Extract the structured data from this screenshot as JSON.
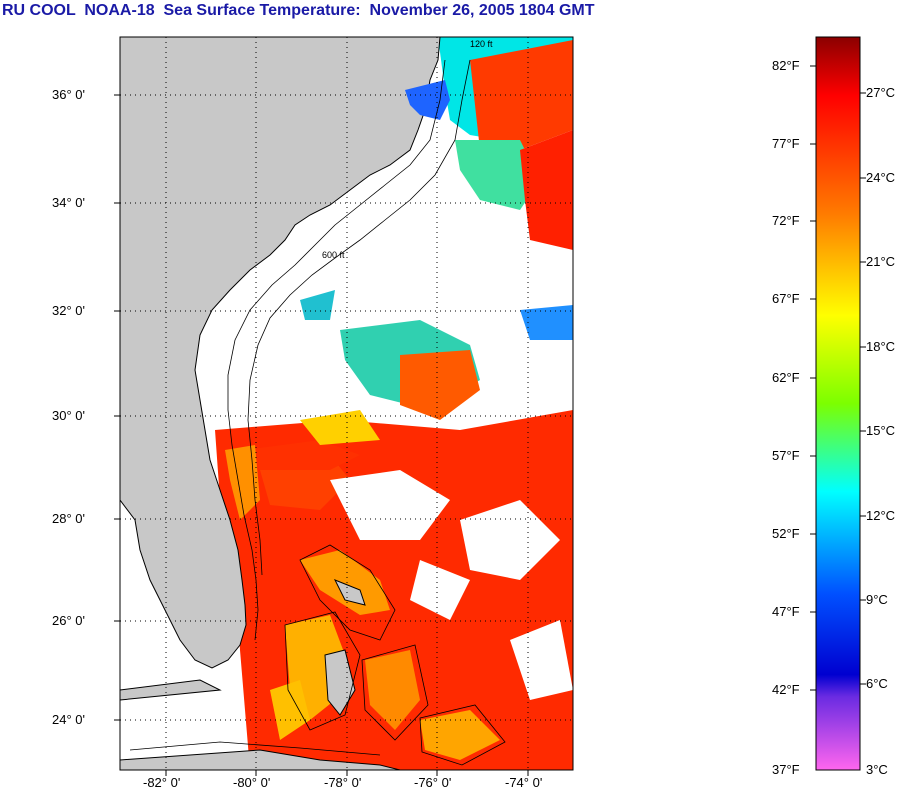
{
  "title": "RU COOL  NOAA-18  Sea Surface Temperature:  November 26, 2005 1804 GMT",
  "map": {
    "lat_ticks": [
      "36° 0'",
      "34° 0'",
      "32° 0'",
      "30° 0'",
      "28° 0'",
      "26° 0'",
      "24° 0'"
    ],
    "lon_ticks": [
      "-82° 0'",
      "-80° 0'",
      "-78° 0'",
      "-76° 0'",
      "-74° 0'"
    ],
    "contour_labels": [
      "120 ft",
      "600 ft"
    ],
    "colors": {
      "land": "#c8c8c8",
      "cloud": "#ffffff",
      "grid": "#000000"
    }
  },
  "colorbar": {
    "fahrenheit_labels": [
      "82°F",
      "77°F",
      "72°F",
      "67°F",
      "62°F",
      "57°F",
      "52°F",
      "47°F",
      "42°F",
      "37°F"
    ],
    "celsius_labels": [
      "27°C",
      "24°C",
      "21°C",
      "18°C",
      "15°C",
      "12°C",
      "9°C",
      "6°C",
      "3°C"
    ],
    "colors_top_to_bottom": [
      "#8b0000",
      "#ff0000",
      "#ff7a00",
      "#ffff00",
      "#7cff00",
      "#00ffff",
      "#0050ff",
      "#0000cc",
      "#8a2be2",
      "#ff66ee"
    ]
  }
}
